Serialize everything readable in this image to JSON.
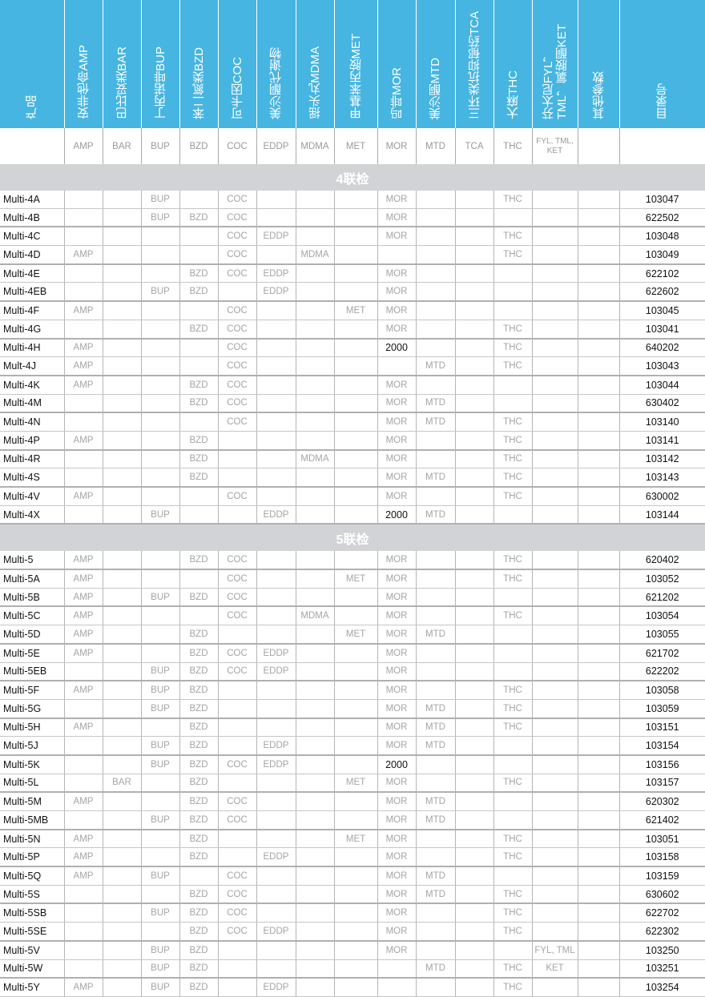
{
  "header": {
    "product": "产品",
    "columns": [
      "安非他命AMP",
      "巴比妥类BAR",
      "丁丙诺啡BUP",
      "苯二氮类BZD",
      "可卡因COC",
      "美沙酮代谢物",
      "摇头丸MDMA",
      "甲基苯丙胺MET",
      "吗啡MOR",
      "美沙酮MTD",
      "三环类抗抑郁药TCA",
      "大麻THC",
      [
        "芬太尼FYL，",
        "TML，氯胺酮KET"
      ],
      "其他参数"
    ],
    "catalog": "目录号"
  },
  "codes": [
    "AMP",
    "BAR",
    "BUP",
    "BZD",
    "COC",
    "EDDP",
    "MDMA",
    "MET",
    "MOR",
    "MTD",
    "TCA",
    "THC",
    "FYL, TML, KET",
    ""
  ],
  "colors": {
    "header_bg": "#46b5e2",
    "section_bg": "#d1d3d6",
    "marker_text": "#a5a5a5"
  },
  "sections": [
    {
      "title": "4联检",
      "rows": [
        {
          "product": "Multi-4A",
          "cells": [
            "",
            "",
            "BUP",
            "",
            "COC",
            "",
            "",
            "",
            "MOR",
            "",
            "",
            "THC",
            "",
            ""
          ],
          "catalog": "103047"
        },
        {
          "product": "Multi-4B",
          "cells": [
            "",
            "",
            "BUP",
            "BZD",
            "COC",
            "",
            "",
            "",
            "MOR",
            "",
            "",
            "",
            "",
            ""
          ],
          "catalog": "622502"
        },
        {
          "product": "Multi-4C",
          "cells": [
            "",
            "",
            "",
            "",
            "COC",
            "EDDP",
            "",
            "",
            "MOR",
            "",
            "",
            "THC",
            "",
            ""
          ],
          "catalog": "103048"
        },
        {
          "product": "Multi-4D",
          "cells": [
            "AMP",
            "",
            "",
            "",
            "COC",
            "",
            "MDMA",
            "",
            "",
            "",
            "",
            "THC",
            "",
            ""
          ],
          "catalog": "103049"
        },
        {
          "product": "Multi-4E",
          "cells": [
            "",
            "",
            "",
            "BZD",
            "COC",
            "EDDP",
            "",
            "",
            "MOR",
            "",
            "",
            "",
            "",
            ""
          ],
          "catalog": "622102"
        },
        {
          "product": "Multi-4EB",
          "cells": [
            "",
            "",
            "BUP",
            "BZD",
            "",
            "EDDP",
            "",
            "",
            "MOR",
            "",
            "",
            "",
            "",
            ""
          ],
          "catalog": "622602"
        },
        {
          "product": "Multi-4F",
          "cells": [
            "AMP",
            "",
            "",
            "",
            "COC",
            "",
            "",
            "MET",
            "MOR",
            "",
            "",
            "",
            "",
            ""
          ],
          "catalog": "103045"
        },
        {
          "product": "Multi-4G",
          "cells": [
            "",
            "",
            "",
            "BZD",
            "COC",
            "",
            "",
            "",
            "MOR",
            "",
            "",
            "THC",
            "",
            ""
          ],
          "catalog": "103041"
        },
        {
          "product": "Multi-4H",
          "cells": [
            "AMP",
            "",
            "",
            "",
            "COC",
            "",
            "",
            "",
            "2000",
            "",
            "",
            "THC",
            "",
            ""
          ],
          "catalog": "640202"
        },
        {
          "product": "Mult-4J",
          "cells": [
            "AMP",
            "",
            "",
            "",
            "COC",
            "",
            "",
            "",
            "",
            "MTD",
            "",
            "THC",
            "",
            ""
          ],
          "catalog": "103043"
        },
        {
          "product": "Multi-4K",
          "cells": [
            "AMP",
            "",
            "",
            "BZD",
            "COC",
            "",
            "",
            "",
            "MOR",
            "",
            "",
            "",
            "",
            ""
          ],
          "catalog": "103044"
        },
        {
          "product": "Multi-4M",
          "cells": [
            "",
            "",
            "",
            "BZD",
            "COC",
            "",
            "",
            "",
            "MOR",
            "MTD",
            "",
            "",
            "",
            ""
          ],
          "catalog": "630402"
        },
        {
          "product": "Multi-4N",
          "cells": [
            "",
            "",
            "",
            "",
            "COC",
            "",
            "",
            "",
            "MOR",
            "MTD",
            "",
            "THC",
            "",
            ""
          ],
          "catalog": "103140"
        },
        {
          "product": "Multi-4P",
          "cells": [
            "AMP",
            "",
            "",
            "BZD",
            "",
            "",
            "",
            "",
            "MOR",
            "",
            "",
            "THC",
            "",
            ""
          ],
          "catalog": "103141"
        },
        {
          "product": "Multi-4R",
          "cells": [
            "",
            "",
            "",
            "BZD",
            "",
            "",
            "MDMA",
            "",
            "MOR",
            "",
            "",
            "THC",
            "",
            ""
          ],
          "catalog": "103142"
        },
        {
          "product": "Multi-4S",
          "cells": [
            "",
            "",
            "",
            "BZD",
            "",
            "",
            "",
            "",
            "MOR",
            "MTD",
            "",
            "THC",
            "",
            ""
          ],
          "catalog": "103143"
        },
        {
          "product": "Multi-4V",
          "cells": [
            "AMP",
            "",
            "",
            "",
            "COC",
            "",
            "",
            "",
            "MOR",
            "",
            "",
            "THC",
            "",
            ""
          ],
          "catalog": "630002"
        },
        {
          "product": "Multi-4X",
          "cells": [
            "",
            "",
            "BUP",
            "",
            "",
            "EDDP",
            "",
            "",
            "2000",
            "MTD",
            "",
            "",
            "",
            ""
          ],
          "catalog": "103144"
        }
      ]
    },
    {
      "title": "5联检",
      "rows": [
        {
          "product": "Multi-5",
          "cells": [
            "AMP",
            "",
            "",
            "BZD",
            "COC",
            "",
            "",
            "",
            "MOR",
            "",
            "",
            "THC",
            "",
            ""
          ],
          "catalog": "620402"
        },
        {
          "product": "Multi-5A",
          "cells": [
            "AMP",
            "",
            "",
            "",
            "COC",
            "",
            "",
            "MET",
            "MOR",
            "",
            "",
            "THC",
            "",
            ""
          ],
          "catalog": "103052"
        },
        {
          "product": "Multi-5B",
          "cells": [
            "AMP",
            "",
            "BUP",
            "BZD",
            "COC",
            "",
            "",
            "",
            "MOR",
            "",
            "",
            "",
            "",
            ""
          ],
          "catalog": "621202"
        },
        {
          "product": "Multi-5C",
          "cells": [
            "AMP",
            "",
            "",
            "",
            "COC",
            "",
            "MDMA",
            "",
            "MOR",
            "",
            "",
            "THC",
            "",
            ""
          ],
          "catalog": "103054"
        },
        {
          "product": "Multi-5D",
          "cells": [
            "AMP",
            "",
            "",
            "BZD",
            "",
            "",
            "",
            "MET",
            "MOR",
            "MTD",
            "",
            "",
            "",
            ""
          ],
          "catalog": "103055"
        },
        {
          "product": "Multi-5E",
          "cells": [
            "AMP",
            "",
            "",
            "BZD",
            "COC",
            "EDDP",
            "",
            "",
            "MOR",
            "",
            "",
            "",
            "",
            ""
          ],
          "catalog": "621702"
        },
        {
          "product": "Multi-5EB",
          "cells": [
            "",
            "",
            "BUP",
            "BZD",
            "COC",
            "EDDP",
            "",
            "",
            "MOR",
            "",
            "",
            "",
            "",
            ""
          ],
          "catalog": "622202"
        },
        {
          "product": "Multi-5F",
          "cells": [
            "AMP",
            "",
            "BUP",
            "BZD",
            "",
            "",
            "",
            "",
            "MOR",
            "",
            "",
            "THC",
            "",
            ""
          ],
          "catalog": "103058"
        },
        {
          "product": "Multi-5G",
          "cells": [
            "",
            "",
            "BUP",
            "BZD",
            "",
            "",
            "",
            "",
            "MOR",
            "MTD",
            "",
            "THC",
            "",
            ""
          ],
          "catalog": "103059"
        },
        {
          "product": "Multi-5H",
          "cells": [
            "AMP",
            "",
            "",
            "BZD",
            "",
            "",
            "",
            "",
            "MOR",
            "MTD",
            "",
            "THC",
            "",
            ""
          ],
          "catalog": "103151"
        },
        {
          "product": "Multi-5J",
          "cells": [
            "",
            "",
            "BUP",
            "BZD",
            "",
            "EDDP",
            "",
            "",
            "MOR",
            "MTD",
            "",
            "",
            "",
            ""
          ],
          "catalog": "103154"
        },
        {
          "product": "Multi-5K",
          "cells": [
            "",
            "",
            "BUP",
            "BZD",
            "COC",
            "EDDP",
            "",
            "",
            "2000",
            "",
            "",
            "",
            "",
            ""
          ],
          "catalog": "103156"
        },
        {
          "product": "Multi-5L",
          "cells": [
            "",
            "BAR",
            "",
            "BZD",
            "",
            "",
            "",
            "MET",
            "MOR",
            "",
            "",
            "THC",
            "",
            ""
          ],
          "catalog": "103157"
        },
        {
          "product": "Multi-5M",
          "cells": [
            "AMP",
            "",
            "",
            "BZD",
            "COC",
            "",
            "",
            "",
            "MOR",
            "MTD",
            "",
            "",
            "",
            ""
          ],
          "catalog": "620302"
        },
        {
          "product": "Multi-5MB",
          "cells": [
            "",
            "",
            "BUP",
            "BZD",
            "COC",
            "",
            "",
            "",
            "MOR",
            "MTD",
            "",
            "",
            "",
            ""
          ],
          "catalog": "621402"
        },
        {
          "product": "Multi-5N",
          "cells": [
            "AMP",
            "",
            "",
            "BZD",
            "",
            "",
            "",
            "MET",
            "MOR",
            "",
            "",
            "THC",
            "",
            ""
          ],
          "catalog": "103051"
        },
        {
          "product": "Multi-5P",
          "cells": [
            "AMP",
            "",
            "",
            "BZD",
            "",
            "EDDP",
            "",
            "",
            "MOR",
            "",
            "",
            "THC",
            "",
            ""
          ],
          "catalog": "103158"
        },
        {
          "product": "Multi-5Q",
          "cells": [
            "AMP",
            "",
            "BUP",
            "",
            "COC",
            "",
            "",
            "",
            "MOR",
            "MTD",
            "",
            "",
            "",
            ""
          ],
          "catalog": "103159"
        },
        {
          "product": "Multi-5S",
          "cells": [
            "",
            "",
            "",
            "BZD",
            "COC",
            "",
            "",
            "",
            "MOR",
            "MTD",
            "",
            "THC",
            "",
            ""
          ],
          "catalog": "630602"
        },
        {
          "product": "Multi-5SB",
          "cells": [
            "",
            "",
            "BUP",
            "BZD",
            "COC",
            "",
            "",
            "",
            "MOR",
            "",
            "",
            "THC",
            "",
            ""
          ],
          "catalog": "622702"
        },
        {
          "product": "Multi-5SE",
          "cells": [
            "",
            "",
            "",
            "BZD",
            "COC",
            "EDDP",
            "",
            "",
            "MOR",
            "",
            "",
            "THC",
            "",
            ""
          ],
          "catalog": "622302"
        },
        {
          "product": "Multi-5V",
          "cells": [
            "",
            "",
            "BUP",
            "BZD",
            "",
            "",
            "",
            "",
            "MOR",
            "",
            "",
            "",
            "FYL, TML",
            ""
          ],
          "catalog": "103250"
        },
        {
          "product": "Multi-5W",
          "cells": [
            "",
            "",
            "BUP",
            "BZD",
            "",
            "",
            "",
            "",
            "",
            "MTD",
            "",
            "THC",
            "KET",
            ""
          ],
          "catalog": "103251"
        },
        {
          "product": "Multi-5Y",
          "cells": [
            "AMP",
            "",
            "BUP",
            "BZD",
            "",
            "EDDP",
            "",
            "",
            "",
            "",
            "",
            "THC",
            "",
            ""
          ],
          "catalog": "103254"
        }
      ]
    }
  ]
}
